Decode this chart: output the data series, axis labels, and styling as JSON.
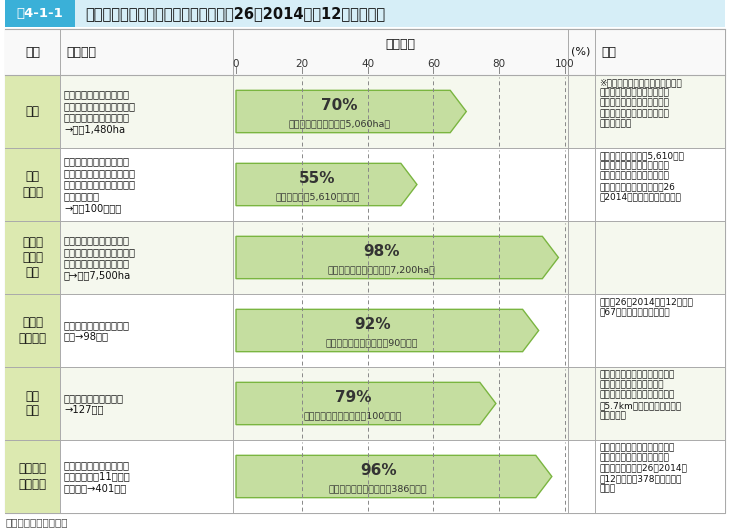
{
  "title_box_label": "図4-1-1",
  "title_box_bg": "#3ab0d8",
  "title_text": "農地・農業用施設等の復旧状況（平成26（2014）年12月末現在）",
  "title_area_bg": "#d6eef7",
  "axis_ticks": [
    0,
    20,
    40,
    60,
    80,
    100
  ],
  "rows": [
    {
      "item": "農地",
      "damage": "６県（青森県、岩手県、\n宮城県、福島県、茨城県、\n千葉県）の津波被災農地\n→２万1,480ha",
      "pct": 70,
      "bar_pct_label": "70%",
      "bar_sub_label": "（営農再開可能：１万5,060ha）",
      "note": "※津波被災農地については、「農\n業・農村の復興マスタープラ\nン」に基づき、被災農地の営\n農再開に向けて、農地復旧や\n除塩を実施中"
    },
    {
      "item": "農業\n経営体",
      "damage": "６県（青森県、岩手県、\n宮城県、福島県、茨城県、\n千葉県）の津波被害のあっ\nた農業経営体\n→１万100経営体",
      "pct": 55,
      "bar_pct_label": "55%",
      "bar_sub_label": "（経営再開：5,610経営体）",
      "note": "・経営を再開した約5,610経営\n体は、農業生産過程の対象作\n業又はその準備を一部でも再\n開した経営体を含む（平成26\n（2014）年２月１日時点）。"
    },
    {
      "item": "農地の\nがれき\n撤去",
      "damage": "がれきが堆積していた岩\n手県、宮城県、福島県（避\n難指示区域を除く）の農\n地→１万7,500ha",
      "pct": 98,
      "bar_pct_label": "98%",
      "bar_sub_label": "（がれき撤去済み：１万7,200ha）",
      "note": ""
    },
    {
      "item": "主要な\n排水機場",
      "damage": "復旧が必要な主要な排水\n機場→98か所",
      "pct": 92,
      "bar_pct_label": "92%",
      "bar_sub_label": "（復旧完了又は実施中：90か所）",
      "note": "・平成26（2014）年12月まで\nに67か所で本格復旧が完了"
    },
    {
      "item": "農地\n海岸",
      "damage": "復旧が必要な農地海岸\n→127地区",
      "pct": 79,
      "bar_pct_label": "79%",
      "bar_sub_label": "（復旧完了又は実施中：100地区）",
      "note": "・農地海岸については、おおむ\nね５年での復旧を目指す。\n・太平洋に面する直轄代行区間\n約5.7kmのうち、８割の堤防\n復旧が完了"
    },
    {
      "item": "農業集落\n排水施設",
      "damage": "被害のあった青森県から\n長野県までの11県の被\n災地区数→401地区",
      "pct": 96,
      "bar_pct_label": "96%",
      "bar_sub_label": "（復旧完了又は実施中：386地区）",
      "note": "・東電福島第一原発の事故によ\nる避難指示区域や津波被災地\n区等を除き、平成26（2014）\n年12月までに378地区で復旧\nが完了"
    }
  ],
  "bar_fill": "#c5dea0",
  "bar_edge": "#7ab540",
  "item_col_bg": "#dce9b0",
  "row_bg_even": "#f5f8ee",
  "row_bg_odd": "#ffffff",
  "border_color": "#aaaaaa",
  "header_bg": "#ffffff",
  "footer": "資料：農林水産省作成"
}
